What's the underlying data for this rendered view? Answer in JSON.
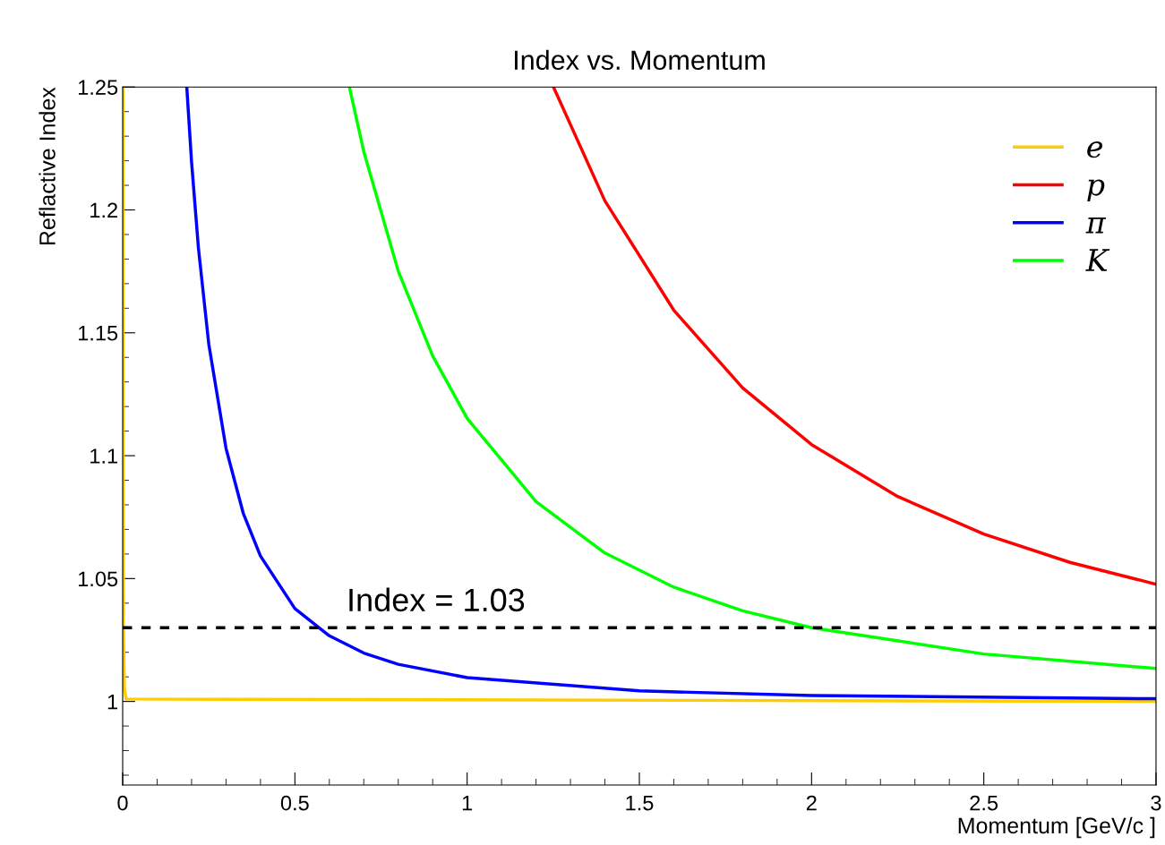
{
  "chart_data": {
    "type": "line",
    "title": "Index vs. Momentum",
    "xlabel": "Momentum [GeV/c ]",
    "ylabel": "Reflactive Index",
    "xlim": [
      0,
      3
    ],
    "ylim": [
      0.966,
      1.25
    ],
    "xticks": [
      0,
      0.5,
      1,
      1.5,
      2,
      2.5,
      3
    ],
    "yticks": [
      1,
      1.05,
      1.1,
      1.15,
      1.2,
      1.25
    ],
    "grid": false,
    "legend": "top right",
    "line_style": "solid",
    "marker": "none",
    "series": [
      {
        "name": "e",
        "color": "#ffcc00",
        "x": [
          0.0005,
          0.001,
          0.002,
          0.005,
          0.01,
          3
        ],
        "values": [
          1.25,
          1.12,
          1.03,
          1.005,
          1.001,
          1.0
        ]
      },
      {
        "name": "p",
        "color": "#ff0000",
        "x": [
          1.2507,
          1.4,
          1.6,
          1.8,
          2.0,
          2.25,
          2.5,
          2.75,
          3.0
        ],
        "values": [
          1.25,
          1.2037,
          1.1592,
          1.1276,
          1.1045,
          1.0834,
          1.0681,
          1.0566,
          1.0477
        ]
      },
      {
        "name": "π",
        "color": "#0000ff",
        "x": [
          0.1861,
          0.2,
          0.22,
          0.25,
          0.3,
          0.35,
          0.4,
          0.5,
          0.6,
          0.7,
          0.8,
          1.0,
          1.5,
          2.0,
          3.0
        ],
        "values": [
          1.25,
          1.2195,
          1.1844,
          1.1454,
          1.103,
          1.0766,
          1.0592,
          1.0378,
          1.0267,
          1.0197,
          1.0151,
          1.0097,
          1.0043,
          1.0024,
          1.0011
        ]
      },
      {
        "name": "K",
        "color": "#00ff00",
        "x": [
          0.6583,
          0.7,
          0.8,
          0.9,
          1.0,
          1.2,
          1.4,
          1.6,
          1.8,
          2.0,
          2.5,
          3.0
        ],
        "values": [
          1.25,
          1.2237,
          1.1751,
          1.1406,
          1.1152,
          1.0813,
          1.0604,
          1.0465,
          1.0369,
          1.03,
          1.0193,
          1.0134
        ]
      }
    ],
    "ref_lines": [
      {
        "axis": "y",
        "value": 1.03,
        "label": "Index = 1.03",
        "color": "#000000",
        "line_style": "dashed"
      }
    ]
  }
}
